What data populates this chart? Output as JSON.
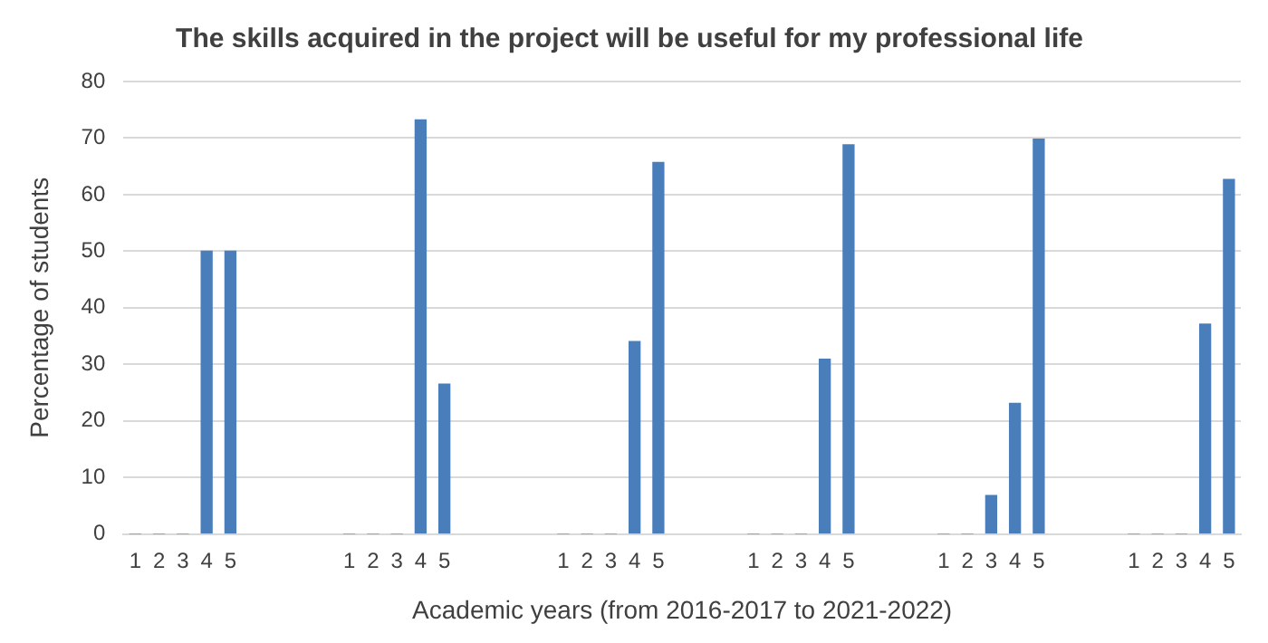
{
  "chart_data": {
    "type": "bar",
    "title": "The skills acquired in the project will be useful for my professional life",
    "xlabel": "Academic years (from 2016-2017 to 2021-2022)",
    "ylabel": "Percentage of students",
    "categories": [
      "1",
      "2",
      "3",
      "4",
      "5",
      null,
      null,
      null,
      null,
      "1",
      "2",
      "3",
      "4",
      "5",
      null,
      null,
      null,
      null,
      "1",
      "2",
      "3",
      "4",
      "5",
      null,
      null,
      null,
      "1",
      "2",
      "3",
      "4",
      "5",
      null,
      null,
      null,
      "1",
      "2",
      "3",
      "4",
      "5",
      null,
      null,
      null,
      "1",
      "2",
      "3",
      "4",
      "5"
    ],
    "values": [
      0,
      0,
      0,
      50,
      50,
      null,
      null,
      null,
      null,
      0,
      0,
      0,
      73.2,
      26.5,
      null,
      null,
      null,
      null,
      0,
      0,
      0,
      34,
      65.7,
      null,
      null,
      null,
      0,
      0,
      0,
      30.9,
      68.8,
      null,
      null,
      null,
      0,
      0,
      6.8,
      23.1,
      69.8,
      null,
      null,
      null,
      0,
      0,
      0,
      37.1,
      62.7
    ],
    "color": "#4a7ebb",
    "ylim": [
      0,
      80
    ],
    "yticks": [
      0,
      10,
      20,
      30,
      40,
      50,
      60,
      70,
      80
    ],
    "grid": "y",
    "legend": false
  }
}
